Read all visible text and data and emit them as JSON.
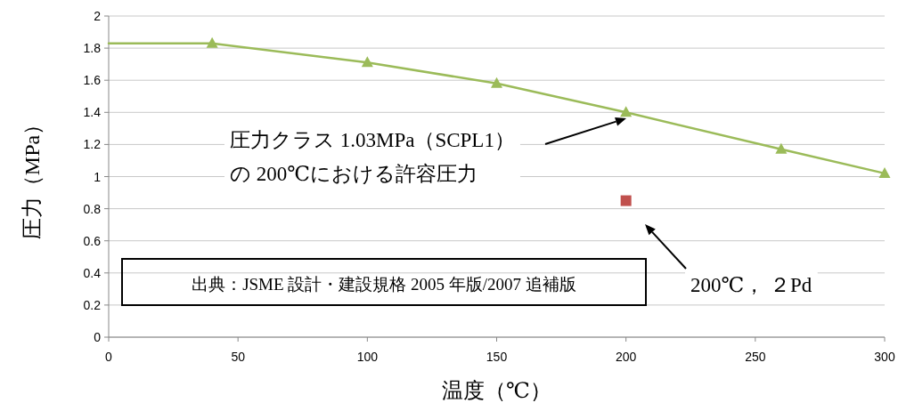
{
  "chart_data": {
    "type": "line",
    "xlabel": "温度（℃）",
    "ylabel": "圧力（MPa）",
    "xlim": [
      0,
      300
    ],
    "xticks": [
      0,
      50,
      100,
      150,
      200,
      250,
      300
    ],
    "ylim": [
      0,
      2
    ],
    "yticks": [
      0,
      {
        "value": 0.2,
        "label": "0.2"
      },
      {
        "value": 0.4,
        "label": "0.4"
      },
      {
        "value": 0.6,
        "label": "0.6"
      },
      {
        "value": 0.8,
        "label": "0.8"
      },
      1,
      {
        "value": 1.2,
        "label": "1.2"
      },
      {
        "value": 1.4,
        "label": "1.4"
      },
      {
        "value": 1.6,
        "label": "1.6"
      },
      {
        "value": 1.8,
        "label": "1.8"
      },
      2
    ],
    "grid": "y",
    "series": [
      {
        "color": "#9bbb59",
        "x": [
          0,
          40
        ],
        "values": [
          1.83,
          1.83
        ]
      },
      {
        "color": "#9bbb59",
        "marker": "triangle",
        "x": [
          40,
          100,
          150,
          200,
          260,
          300
        ],
        "values": [
          1.83,
          1.71,
          1.58,
          1.4,
          1.17,
          1.02
        ]
      },
      {
        "type": "scatter",
        "color": "#c0504d",
        "marker": "square",
        "x": [
          200
        ],
        "values": [
          0.85
        ]
      }
    ],
    "annotations": [
      "圧力クラス 1.03MPa（SCPL1）の 200℃における許容圧力",
      "200℃， ２Pd",
      "出典：JSME 設計・建設規格 2005 年版/2007 追補版"
    ]
  }
}
